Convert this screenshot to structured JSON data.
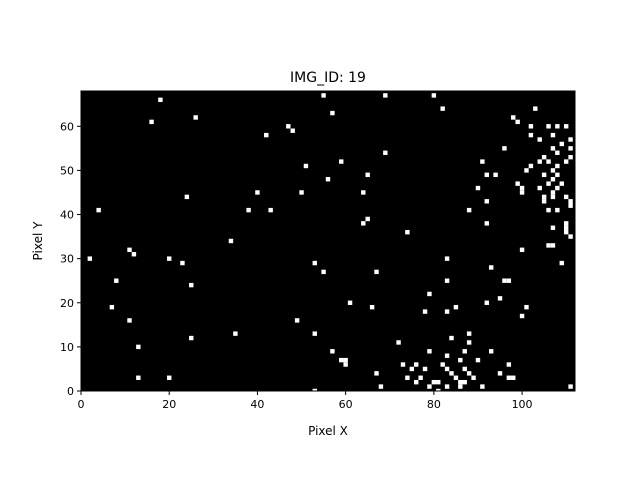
{
  "chart_data": {
    "type": "heatmap",
    "title": "IMG_ID: 19",
    "xlabel": "Pixel X",
    "ylabel": "Pixel Y",
    "xlim": [
      0,
      112
    ],
    "ylim": [
      0,
      68
    ],
    "x_ticks": [
      0,
      20,
      40,
      60,
      80,
      100
    ],
    "y_ticks": [
      0,
      10,
      20,
      30,
      40,
      50,
      60
    ],
    "background_color": "#000000",
    "pixel_color": "#ffffff",
    "bright_pixels": [
      [
        2,
        30
      ],
      [
        4,
        41
      ],
      [
        7,
        19
      ],
      [
        8,
        25
      ],
      [
        11,
        32
      ],
      [
        11,
        16
      ],
      [
        12,
        31
      ],
      [
        13,
        10
      ],
      [
        13,
        3
      ],
      [
        16,
        61
      ],
      [
        18,
        66
      ],
      [
        20,
        30
      ],
      [
        20,
        3
      ],
      [
        23,
        29
      ],
      [
        24,
        44
      ],
      [
        25,
        24
      ],
      [
        25,
        12
      ],
      [
        26,
        62
      ],
      [
        34,
        34
      ],
      [
        35,
        13
      ],
      [
        38,
        41
      ],
      [
        40,
        45
      ],
      [
        42,
        58
      ],
      [
        43,
        41
      ],
      [
        47,
        60
      ],
      [
        48,
        59
      ],
      [
        49,
        16
      ],
      [
        50,
        45
      ],
      [
        51,
        51
      ],
      [
        53,
        29
      ],
      [
        53,
        13
      ],
      [
        53,
        0
      ],
      [
        55,
        67
      ],
      [
        55,
        27
      ],
      [
        56,
        48
      ],
      [
        57,
        63
      ],
      [
        57,
        9
      ],
      [
        59,
        52
      ],
      [
        59,
        7
      ],
      [
        60,
        7
      ],
      [
        60,
        6
      ],
      [
        61,
        20
      ],
      [
        64,
        45
      ],
      [
        64,
        38
      ],
      [
        65,
        49
      ],
      [
        65,
        39
      ],
      [
        66,
        19
      ],
      [
        67,
        27
      ],
      [
        67,
        4
      ],
      [
        68,
        1
      ],
      [
        69,
        67
      ],
      [
        69,
        54
      ],
      [
        72,
        11
      ],
      [
        73,
        6
      ],
      [
        74,
        36
      ],
      [
        74,
        3
      ],
      [
        75,
        5
      ],
      [
        76,
        6
      ],
      [
        76,
        2
      ],
      [
        77,
        3
      ],
      [
        78,
        5
      ],
      [
        78,
        18
      ],
      [
        79,
        22
      ],
      [
        79,
        9
      ],
      [
        79,
        1
      ],
      [
        80,
        67
      ],
      [
        80,
        2
      ],
      [
        81,
        2
      ],
      [
        81,
        0
      ],
      [
        82,
        64
      ],
      [
        82,
        6
      ],
      [
        83,
        30
      ],
      [
        83,
        25
      ],
      [
        83,
        18
      ],
      [
        83,
        8
      ],
      [
        83,
        5
      ],
      [
        83,
        1
      ],
      [
        84,
        12
      ],
      [
        84,
        4
      ],
      [
        85,
        19
      ],
      [
        85,
        3
      ],
      [
        86,
        7
      ],
      [
        86,
        2
      ],
      [
        86,
        1
      ],
      [
        87,
        9
      ],
      [
        87,
        5
      ],
      [
        87,
        2
      ],
      [
        88,
        41
      ],
      [
        88,
        13
      ],
      [
        88,
        11
      ],
      [
        88,
        4
      ],
      [
        89,
        3
      ],
      [
        90,
        46
      ],
      [
        90,
        7
      ],
      [
        91,
        52
      ],
      [
        91,
        1
      ],
      [
        92,
        43
      ],
      [
        92,
        38
      ],
      [
        92,
        20
      ],
      [
        92,
        49
      ],
      [
        93,
        28
      ],
      [
        93,
        9
      ],
      [
        94,
        49
      ],
      [
        95,
        21
      ],
      [
        95,
        4
      ],
      [
        96,
        55
      ],
      [
        96,
        25
      ],
      [
        97,
        25
      ],
      [
        97,
        6
      ],
      [
        97,
        3
      ],
      [
        98,
        62
      ],
      [
        98,
        3
      ],
      [
        99,
        61
      ],
      [
        99,
        47
      ],
      [
        100,
        45
      ],
      [
        100,
        46
      ],
      [
        100,
        32
      ],
      [
        100,
        17
      ],
      [
        101,
        19
      ],
      [
        101,
        50
      ],
      [
        102,
        60
      ],
      [
        102,
        58
      ],
      [
        102,
        51
      ],
      [
        103,
        64
      ],
      [
        104,
        57
      ],
      [
        104,
        46
      ],
      [
        104,
        52
      ],
      [
        105,
        53
      ],
      [
        105,
        49
      ],
      [
        105,
        44
      ],
      [
        105,
        43
      ],
      [
        106,
        60
      ],
      [
        106,
        52
      ],
      [
        106,
        47
      ],
      [
        106,
        41
      ],
      [
        106,
        33
      ],
      [
        107,
        58
      ],
      [
        107,
        55
      ],
      [
        107,
        50
      ],
      [
        107,
        48
      ],
      [
        107,
        45
      ],
      [
        107,
        44
      ],
      [
        107,
        37
      ],
      [
        107,
        33
      ],
      [
        108,
        60
      ],
      [
        108,
        54
      ],
      [
        108,
        51
      ],
      [
        108,
        49
      ],
      [
        108,
        46
      ],
      [
        108,
        41
      ],
      [
        109,
        56
      ],
      [
        109,
        29
      ],
      [
        109,
        47
      ],
      [
        110,
        60
      ],
      [
        110,
        52
      ],
      [
        110,
        44
      ],
      [
        110,
        38
      ],
      [
        110,
        37
      ],
      [
        110,
        36
      ],
      [
        111,
        57
      ],
      [
        111,
        55
      ],
      [
        111,
        53
      ],
      [
        111,
        43
      ],
      [
        111,
        42
      ],
      [
        111,
        35
      ],
      [
        111,
        1
      ]
    ]
  }
}
